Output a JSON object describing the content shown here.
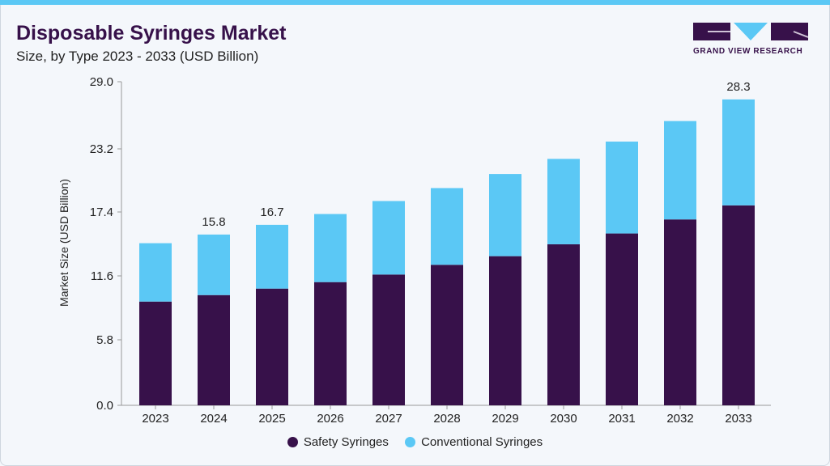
{
  "header": {
    "title": "Disposable Syringes Market",
    "subtitle": "Size, by Type 2023 - 2033 (USD Billion)",
    "logo_text": "GRAND VIEW RESEARCH"
  },
  "colors": {
    "safety": "#37114a",
    "conventional": "#5bc8f5"
  },
  "chart_data": {
    "type": "bar",
    "stacked": true,
    "title": "Disposable Syringes Market",
    "xlabel": "",
    "ylabel": "Market Size (USD Billion)",
    "ylim": [
      0,
      30
    ],
    "yticks": [
      "0.0",
      "5.8",
      "11.6",
      "17.4",
      "23.2",
      "29.0"
    ],
    "categories": [
      "2023",
      "2024",
      "2025",
      "2026",
      "2027",
      "2028",
      "2029",
      "2030",
      "2031",
      "2032",
      "2033"
    ],
    "series": [
      {
        "name": "Safety Syringes",
        "values": [
          9.6,
          10.2,
          10.8,
          11.4,
          12.1,
          13.0,
          13.8,
          14.9,
          15.9,
          17.2,
          18.5
        ]
      },
      {
        "name": "Conventional Syringes",
        "values": [
          5.4,
          5.6,
          5.9,
          6.3,
          6.8,
          7.1,
          7.6,
          7.9,
          8.5,
          9.1,
          9.8
        ]
      }
    ],
    "data_labels": {
      "2024": "15.8",
      "2025": "16.7",
      "2033": "28.3"
    },
    "legend_position": "bottom"
  }
}
